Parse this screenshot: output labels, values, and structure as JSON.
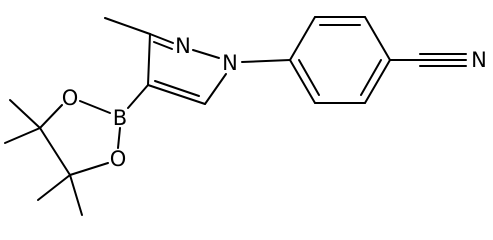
{
  "atoms": [
    {
      "label": "N"
    },
    {
      "label": "N"
    },
    {
      "label": "B"
    },
    {
      "label": "O"
    },
    {
      "label": "O"
    },
    {
      "label": "N"
    }
  ]
}
